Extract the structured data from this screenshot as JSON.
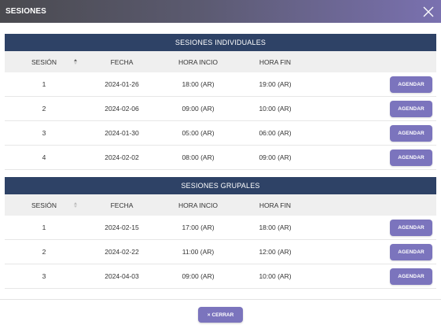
{
  "modal": {
    "title": "SESIONES",
    "close_label": "CERRAR",
    "close_icon": "×"
  },
  "columns": {
    "sesion": "SESIÓN",
    "fecha": "FECHA",
    "hora_inicio": "HORA INCIO",
    "hora_fin": "HORA FIN"
  },
  "individuales": {
    "title": "SESIONES INDIVIDUALES",
    "rows": [
      {
        "sesion": "1",
        "fecha": "2024-01-26",
        "inicio": "18:00 (AR)",
        "fin": "19:00 (AR)",
        "action": "AGENDAR"
      },
      {
        "sesion": "2",
        "fecha": "2024-02-06",
        "inicio": "09:00 (AR)",
        "fin": "10:00 (AR)",
        "action": "AGENDAR"
      },
      {
        "sesion": "3",
        "fecha": "2024-01-30",
        "inicio": "05:00 (AR)",
        "fin": "06:00 (AR)",
        "action": "AGENDAR"
      },
      {
        "sesion": "4",
        "fecha": "2024-02-02",
        "inicio": "08:00 (AR)",
        "fin": "09:00 (AR)",
        "action": "AGENDAR"
      }
    ]
  },
  "grupales": {
    "title": "SESIONES GRUPALES",
    "rows": [
      {
        "sesion": "1",
        "fecha": "2024-02-15",
        "inicio": "17:00 (AR)",
        "fin": "18:00 (AR)",
        "action": "AGENDAR"
      },
      {
        "sesion": "2",
        "fecha": "2024-02-22",
        "inicio": "11:00 (AR)",
        "fin": "12:00 (AR)",
        "action": "AGENDAR"
      },
      {
        "sesion": "3",
        "fecha": "2024-04-03",
        "inicio": "09:00 (AR)",
        "fin": "10:00 (AR)",
        "action": "AGENDAR"
      }
    ]
  },
  "colors": {
    "header_gradient_start": "#4a4a4f",
    "header_gradient_end": "#7a71b0",
    "section_bar": "#2e4266",
    "button": "#7b74bd"
  }
}
